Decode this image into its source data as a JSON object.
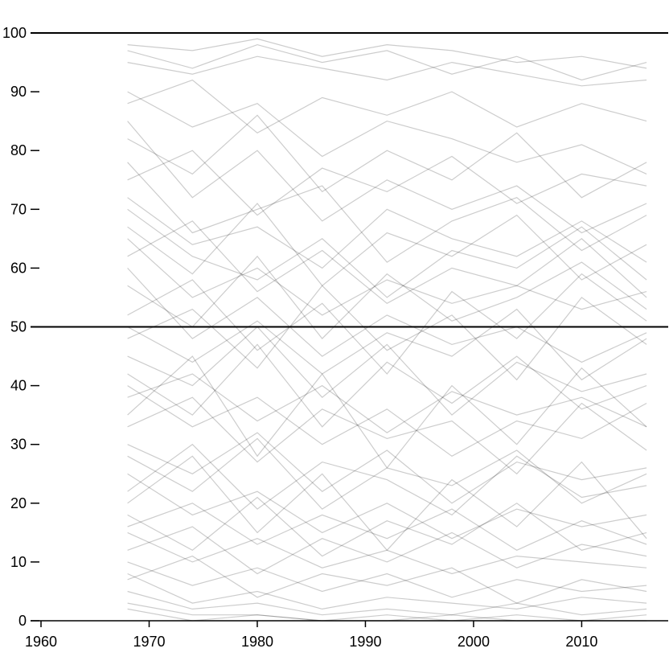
{
  "chart_data": {
    "type": "line",
    "title": "",
    "xlabel": "",
    "ylabel": "",
    "xlim": [
      1960,
      2018
    ],
    "ylim": [
      0,
      100
    ],
    "x_ticks": [
      {
        "value": 1960,
        "label": "1960"
      },
      {
        "value": 1970,
        "label": "1970"
      },
      {
        "value": 1980,
        "label": "1980"
      },
      {
        "value": 1990,
        "label": "1990"
      },
      {
        "value": 2000,
        "label": "2000"
      },
      {
        "value": 2010,
        "label": "2010"
      }
    ],
    "y_ticks": [
      {
        "value": 0,
        "label": "0"
      },
      {
        "value": 10,
        "label": "10"
      },
      {
        "value": 20,
        "label": "20"
      },
      {
        "value": 30,
        "label": "30"
      },
      {
        "value": 40,
        "label": "40"
      },
      {
        "value": 50,
        "label": "50"
      },
      {
        "value": 60,
        "label": "60"
      },
      {
        "value": 70,
        "label": "70"
      },
      {
        "value": 80,
        "label": "80"
      },
      {
        "value": 90,
        "label": "90"
      },
      {
        "value": 100,
        "label": "100"
      }
    ],
    "reference_lines": [
      50,
      100
    ],
    "grid": false,
    "legend": "none",
    "x": [
      1968,
      1974,
      1980,
      1986,
      1992,
      1998,
      2004,
      2010,
      2016
    ],
    "series": [
      {
        "values": [
          98,
          97,
          99,
          96,
          98,
          97,
          95,
          96,
          94
        ]
      },
      {
        "values": [
          95,
          93,
          96,
          94,
          92,
          95,
          93,
          91,
          92
        ]
      },
      {
        "values": [
          90,
          84,
          88,
          79,
          85,
          82,
          78,
          81,
          76
        ]
      },
      {
        "values": [
          85,
          72,
          80,
          68,
          75,
          70,
          74,
          66,
          71
        ]
      },
      {
        "values": [
          78,
          66,
          70,
          74,
          61,
          68,
          72,
          63,
          69
        ]
      },
      {
        "values": [
          70,
          62,
          58,
          65,
          55,
          63,
          60,
          67,
          58
        ]
      },
      {
        "values": [
          65,
          55,
          60,
          52,
          58,
          54,
          57,
          53,
          56
        ]
      },
      {
        "values": [
          60,
          48,
          55,
          45,
          52,
          47,
          50,
          44,
          49
        ]
      },
      {
        "values": [
          52,
          58,
          46,
          54,
          42,
          56,
          48,
          59,
          51
        ]
      },
      {
        "values": [
          45,
          40,
          50,
          38,
          47,
          35,
          44,
          39,
          42
        ]
      },
      {
        "values": [
          40,
          33,
          38,
          30,
          36,
          28,
          34,
          31,
          37
        ]
      },
      {
        "values": [
          35,
          45,
          28,
          42,
          26,
          40,
          30,
          43,
          33
        ]
      },
      {
        "values": [
          30,
          25,
          32,
          22,
          29,
          20,
          27,
          24,
          26
        ]
      },
      {
        "values": [
          25,
          18,
          22,
          15,
          20,
          14,
          19,
          16,
          18
        ]
      },
      {
        "values": [
          20,
          28,
          15,
          25,
          12,
          24,
          16,
          27,
          14
        ]
      },
      {
        "values": [
          15,
          10,
          14,
          9,
          12,
          8,
          11,
          10,
          9
        ]
      },
      {
        "values": [
          10,
          6,
          9,
          5,
          8,
          4,
          7,
          5,
          6
        ]
      },
      {
        "values": [
          8,
          3,
          5,
          2,
          4,
          3,
          2,
          4,
          3
        ]
      },
      {
        "values": [
          5,
          2,
          3,
          1,
          2,
          1,
          3,
          1,
          2
        ]
      },
      {
        "values": [
          3,
          1,
          1,
          0,
          1,
          0,
          1,
          0,
          1
        ]
      },
      {
        "values": [
          2,
          0,
          1,
          0,
          0,
          1,
          0,
          0,
          0
        ]
      },
      {
        "values": [
          88,
          92,
          83,
          89,
          86,
          90,
          84,
          88,
          85
        ]
      },
      {
        "values": [
          75,
          80,
          69,
          77,
          73,
          79,
          71,
          76,
          74
        ]
      },
      {
        "values": [
          67,
          59,
          71,
          57,
          66,
          62,
          69,
          58,
          64
        ]
      },
      {
        "values": [
          57,
          50,
          62,
          48,
          59,
          51,
          55,
          61,
          53
        ]
      },
      {
        "values": [
          48,
          53,
          43,
          57,
          46,
          52,
          41,
          55,
          47
        ]
      },
      {
        "values": [
          42,
          35,
          47,
          33,
          44,
          37,
          45,
          36,
          40
        ]
      },
      {
        "values": [
          33,
          38,
          27,
          36,
          31,
          34,
          25,
          37,
          29
        ]
      },
      {
        "values": [
          22,
          30,
          19,
          27,
          24,
          18,
          28,
          21,
          23
        ]
      },
      {
        "values": [
          18,
          12,
          21,
          11,
          17,
          13,
          20,
          12,
          15
        ]
      },
      {
        "values": [
          12,
          16,
          8,
          14,
          10,
          15,
          9,
          13,
          11
        ]
      },
      {
        "values": [
          7,
          11,
          4,
          8,
          6,
          9,
          3,
          7,
          5
        ]
      },
      {
        "values": [
          97,
          94,
          98,
          95,
          97,
          93,
          96,
          92,
          95
        ]
      },
      {
        "values": [
          82,
          76,
          86,
          73,
          80,
          75,
          83,
          72,
          78
        ]
      },
      {
        "values": [
          72,
          64,
          67,
          60,
          70,
          65,
          62,
          68,
          61
        ]
      },
      {
        "values": [
          62,
          68,
          56,
          63,
          54,
          60,
          57,
          65,
          55
        ]
      },
      {
        "values": [
          50,
          44,
          51,
          42,
          49,
          45,
          53,
          41,
          48
        ]
      },
      {
        "values": [
          38,
          42,
          34,
          40,
          32,
          39,
          35,
          38,
          33
        ]
      },
      {
        "values": [
          28,
          22,
          31,
          19,
          26,
          23,
          29,
          20,
          25
        ]
      },
      {
        "values": [
          16,
          20,
          13,
          18,
          14,
          19,
          12,
          17,
          13
        ]
      }
    ]
  }
}
